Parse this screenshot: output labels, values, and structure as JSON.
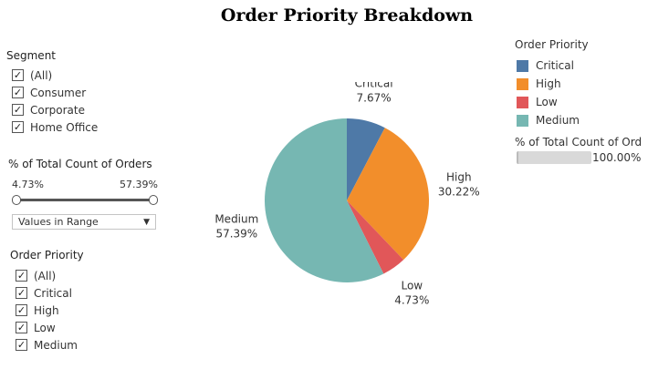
{
  "title": "Order Priority Breakdown",
  "segment_filter": {
    "label": "Segment",
    "options": [
      "(All)",
      "Consumer",
      "Corporate",
      "Home Office"
    ],
    "checked": [
      true,
      true,
      true,
      true
    ]
  },
  "range_filter": {
    "label": "% of Total Count of Orders",
    "min_label": "4.73%",
    "max_label": "57.39%",
    "mode": "Values in Range"
  },
  "priority_filter": {
    "label": "Order Priority",
    "options": [
      "(All)",
      "Critical",
      "High",
      "Low",
      "Medium"
    ],
    "checked": [
      true,
      true,
      true,
      true,
      true
    ]
  },
  "legend": {
    "title": "Order Priority",
    "items": [
      {
        "label": "Critical",
        "color": "#4e79a7"
      },
      {
        "label": "High",
        "color": "#f28e2b"
      },
      {
        "label": "Low",
        "color": "#e15759"
      },
      {
        "label": "Medium",
        "color": "#76b7b2"
      }
    ]
  },
  "size_legend": {
    "title": "% of Total Count of Ord..",
    "value": "100.00%"
  },
  "chart_data": {
    "type": "pie",
    "title": "Order Priority Breakdown",
    "slices": [
      {
        "label": "Critical",
        "value": 7.67,
        "value_label": "7.67%",
        "color": "#4e79a7"
      },
      {
        "label": "High",
        "value": 30.22,
        "value_label": "30.22%",
        "color": "#f28e2b"
      },
      {
        "label": "Low",
        "value": 4.73,
        "value_label": "4.73%",
        "color": "#e15759"
      },
      {
        "label": "Medium",
        "value": 57.39,
        "value_label": "57.39%",
        "color": "#76b7b2"
      }
    ]
  }
}
